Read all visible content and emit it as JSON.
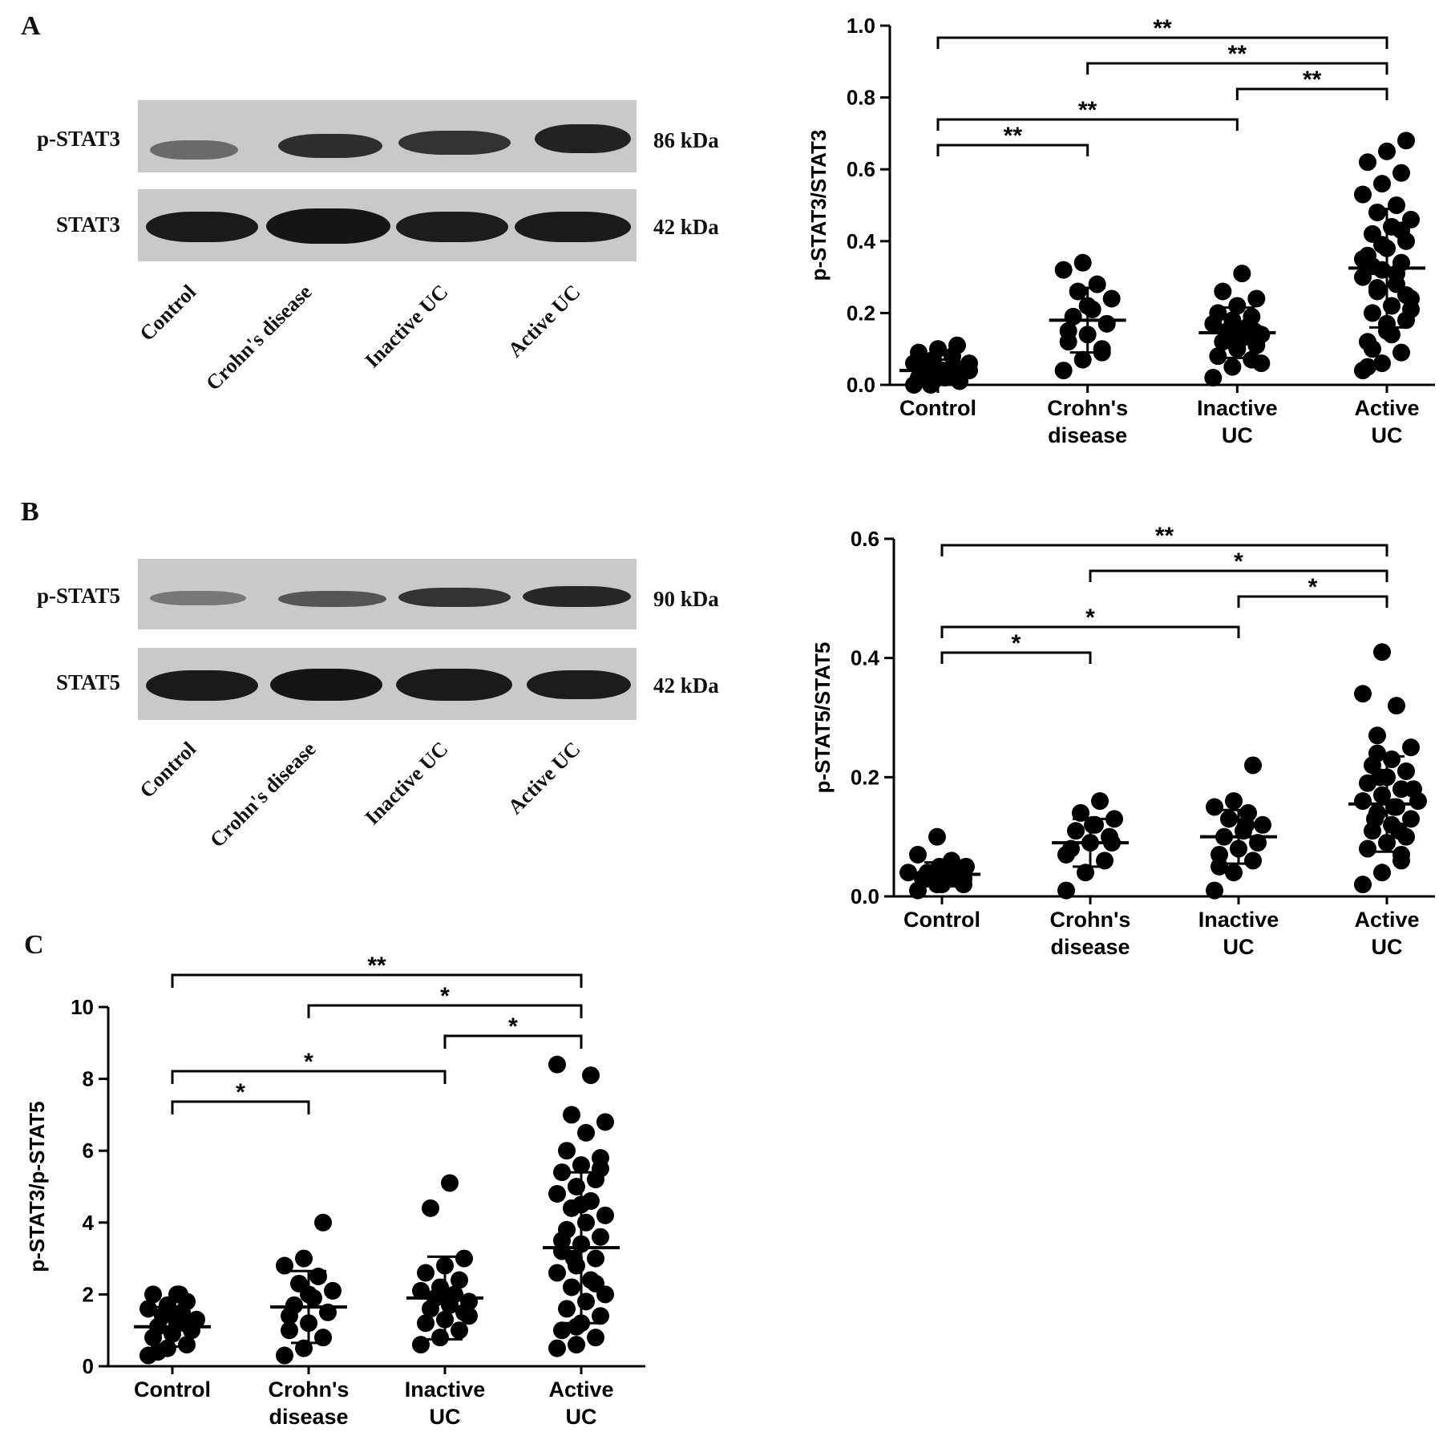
{
  "panels": {
    "A": {
      "letter": "A",
      "blot": {
        "rows": [
          {
            "protein": "p-STAT3",
            "kda": "86 kDa"
          },
          {
            "protein": "STAT3",
            "kda": "42 kDa"
          }
        ],
        "lanes": [
          "Control",
          "Crohn's disease",
          "Inactive UC",
          "Active UC"
        ]
      }
    },
    "B": {
      "letter": "B",
      "blot": {
        "rows": [
          {
            "protein": "p-STAT5",
            "kda": "90 kDa"
          },
          {
            "protein": "STAT5",
            "kda": "42 kDa"
          }
        ],
        "lanes": [
          "Control",
          "Crohn's disease",
          "Inactive UC",
          "Active UC"
        ]
      }
    },
    "C": {
      "letter": "C"
    }
  },
  "chart_data": [
    {
      "type": "scatter",
      "panel": "A",
      "ylabel": "p-STAT3/STAT3",
      "categories": [
        "Control",
        "Crohn's disease",
        "Inactive UC",
        "Active UC"
      ],
      "category_lines": [
        [
          "Control"
        ],
        [
          "Crohn's",
          "disease"
        ],
        [
          "Inactive",
          "UC"
        ],
        [
          "Active",
          "UC"
        ]
      ],
      "ylim": [
        0,
        1.0
      ],
      "yticks": [
        "0.0",
        "0.2",
        "0.4",
        "0.6",
        "0.8",
        "1.0"
      ],
      "mean": [
        0.04,
        0.18,
        0.145,
        0.325
      ],
      "sd": [
        0.03,
        0.09,
        0.07,
        0.165
      ],
      "points": [
        [
          0.0,
          0.01,
          0.01,
          0.02,
          0.02,
          0.03,
          0.03,
          0.04,
          0.04,
          0.05,
          0.05,
          0.06,
          0.07,
          0.08,
          0.09,
          0.1,
          0.11,
          0.0,
          0.02,
          0.06
        ],
        [
          0.04,
          0.07,
          0.09,
          0.12,
          0.14,
          0.17,
          0.19,
          0.21,
          0.24,
          0.26,
          0.28,
          0.32,
          0.34,
          0.1,
          0.15,
          0.22
        ],
        [
          0.02,
          0.05,
          0.07,
          0.08,
          0.1,
          0.11,
          0.12,
          0.13,
          0.14,
          0.15,
          0.16,
          0.17,
          0.18,
          0.19,
          0.2,
          0.22,
          0.24,
          0.26,
          0.31,
          0.06,
          0.12,
          0.15
        ],
        [
          0.04,
          0.06,
          0.09,
          0.12,
          0.15,
          0.18,
          0.2,
          0.22,
          0.24,
          0.26,
          0.28,
          0.3,
          0.32,
          0.34,
          0.36,
          0.38,
          0.4,
          0.42,
          0.44,
          0.46,
          0.48,
          0.5,
          0.53,
          0.56,
          0.59,
          0.62,
          0.65,
          0.68,
          0.1,
          0.14,
          0.21,
          0.27,
          0.31,
          0.35,
          0.39,
          0.43,
          0.05,
          0.17,
          0.25,
          0.33
        ]
      ],
      "comparisons": [
        {
          "from": 0,
          "to": 3,
          "label": "**"
        },
        {
          "from": 1,
          "to": 3,
          "label": "**"
        },
        {
          "from": 2,
          "to": 3,
          "label": "**"
        },
        {
          "from": 0,
          "to": 2,
          "label": "**"
        },
        {
          "from": 0,
          "to": 1,
          "label": "**"
        }
      ]
    },
    {
      "type": "scatter",
      "panel": "B",
      "ylabel": "p-STAT5/STAT5",
      "categories": [
        "Control",
        "Crohn's disease",
        "Inactive UC",
        "Active UC"
      ],
      "category_lines": [
        [
          "Control"
        ],
        [
          "Crohn's",
          "disease"
        ],
        [
          "Inactive",
          "UC"
        ],
        [
          "Active",
          "UC"
        ]
      ],
      "ylim": [
        0,
        0.6
      ],
      "yticks": [
        "0.0",
        "0.2",
        "0.4",
        "0.6"
      ],
      "mean": [
        0.037,
        0.09,
        0.1,
        0.155
      ],
      "sd": [
        0.02,
        0.04,
        0.045,
        0.08
      ],
      "points": [
        [
          0.01,
          0.02,
          0.02,
          0.03,
          0.03,
          0.03,
          0.04,
          0.04,
          0.05,
          0.05,
          0.06,
          0.07,
          0.1,
          0.02,
          0.04,
          0.03
        ],
        [
          0.01,
          0.04,
          0.06,
          0.08,
          0.09,
          0.1,
          0.11,
          0.12,
          0.13,
          0.14,
          0.16,
          0.07,
          0.12,
          0.09
        ],
        [
          0.01,
          0.04,
          0.06,
          0.07,
          0.08,
          0.09,
          0.1,
          0.11,
          0.12,
          0.13,
          0.14,
          0.15,
          0.16,
          0.22,
          0.05,
          0.12
        ],
        [
          0.02,
          0.04,
          0.06,
          0.08,
          0.09,
          0.1,
          0.11,
          0.12,
          0.13,
          0.14,
          0.15,
          0.16,
          0.17,
          0.18,
          0.19,
          0.2,
          0.21,
          0.22,
          0.23,
          0.25,
          0.27,
          0.32,
          0.34,
          0.41,
          0.07,
          0.13,
          0.15,
          0.18,
          0.2,
          0.11,
          0.16,
          0.24
        ]
      ],
      "comparisons": [
        {
          "from": 0,
          "to": 3,
          "label": "**"
        },
        {
          "from": 1,
          "to": 3,
          "label": "*"
        },
        {
          "from": 2,
          "to": 3,
          "label": "*"
        },
        {
          "from": 0,
          "to": 2,
          "label": "*"
        },
        {
          "from": 0,
          "to": 1,
          "label": "*"
        }
      ]
    },
    {
      "type": "scatter",
      "panel": "C",
      "ylabel": "p-STAT3/p-STAT5",
      "categories": [
        "Control",
        "Crohn's disease",
        "Inactive UC",
        "Active UC"
      ],
      "category_lines": [
        [
          "Control"
        ],
        [
          "Crohn's",
          "disease"
        ],
        [
          "Inactive",
          "UC"
        ],
        [
          "Active",
          "UC"
        ]
      ],
      "ylim": [
        0,
        10
      ],
      "yticks": [
        "0",
        "2",
        "4",
        "6",
        "8",
        "10"
      ],
      "mean": [
        1.1,
        1.65,
        1.9,
        3.3
      ],
      "sd": [
        0.55,
        1.0,
        1.15,
        2.1
      ],
      "points": [
        [
          0.3,
          0.5,
          0.6,
          0.8,
          0.9,
          1.0,
          1.1,
          1.2,
          1.3,
          1.4,
          1.5,
          1.6,
          1.7,
          1.8,
          2.0,
          2.0,
          2.0,
          0.4,
          1.2
        ],
        [
          0.3,
          0.5,
          0.8,
          1.0,
          1.2,
          1.5,
          1.7,
          1.9,
          2.1,
          2.3,
          2.5,
          2.8,
          3.0,
          4.0,
          1.4,
          2.0
        ],
        [
          0.6,
          0.8,
          1.0,
          1.2,
          1.3,
          1.5,
          1.6,
          1.7,
          1.8,
          1.9,
          2.0,
          2.1,
          2.2,
          2.4,
          2.6,
          2.8,
          3.0,
          4.4,
          5.1,
          1.4,
          2.0
        ],
        [
          0.5,
          0.6,
          0.8,
          1.0,
          1.2,
          1.4,
          1.6,
          1.8,
          2.0,
          2.2,
          2.4,
          2.6,
          2.8,
          3.0,
          3.2,
          3.4,
          3.6,
          3.8,
          4.0,
          4.2,
          4.4,
          4.6,
          4.8,
          5.0,
          5.2,
          5.4,
          5.6,
          5.8,
          6.0,
          6.5,
          6.8,
          7.0,
          8.1,
          8.4,
          1.1,
          2.3,
          3.5,
          4.5,
          5.5,
          3.0
        ]
      ],
      "comparisons": [
        {
          "from": 0,
          "to": 3,
          "label": "**"
        },
        {
          "from": 1,
          "to": 3,
          "label": "*"
        },
        {
          "from": 2,
          "to": 3,
          "label": "*"
        },
        {
          "from": 0,
          "to": 2,
          "label": "*"
        },
        {
          "from": 0,
          "to": 1,
          "label": "*"
        }
      ]
    }
  ]
}
